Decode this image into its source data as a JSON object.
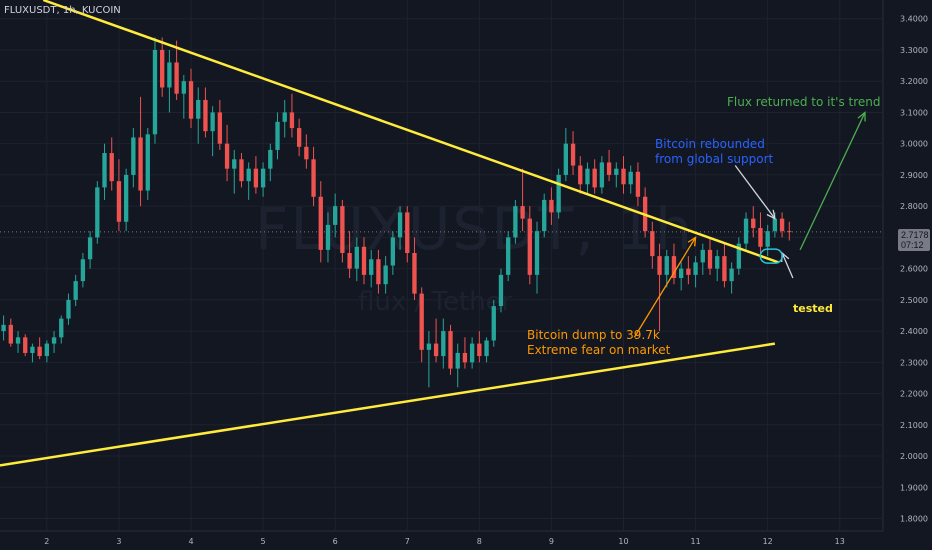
{
  "header": {
    "symbol": "FLUXUSDT, 1h, KUCOIN"
  },
  "watermark": {
    "main": "FLUXUSDT, 1h",
    "sub": "flux / Tether"
  },
  "price_tag": {
    "line1": "2.7178",
    "line2": "07:12"
  },
  "annotations": {
    "trend": "Flux returned to it's trend",
    "bitcoin_rebound_1": "Bitcoin rebounded",
    "bitcoin_rebound_2": "from global support",
    "bitcoin_dump_1": "Bitcoin dump to 39.7k",
    "bitcoin_dump_2": "Extreme fear on market",
    "tested": "tested"
  },
  "colors": {
    "background": "#131722",
    "up": "#26a69a",
    "down": "#ef5350",
    "trendline": "#ffeb3b",
    "grid": "#1e222d",
    "green_arrow": "#4caf50",
    "orange_arrow": "#ff9800",
    "circle": "#26c6da"
  },
  "chart_data": {
    "type": "candlestick",
    "title": "FLUXUSDT, 1h, KUCOIN",
    "x_ticks": [
      "2",
      "3",
      "4",
      "5",
      "6",
      "7",
      "8",
      "9",
      "10",
      "11",
      "12",
      "13"
    ],
    "y_ticks": [
      "1.8000",
      "1.9000",
      "2.0000",
      "2.1000",
      "2.2000",
      "2.3000",
      "2.4000",
      "2.5000",
      "2.6000",
      "2.7000",
      "2.8000",
      "2.9000",
      "3.0000",
      "3.1000",
      "3.2000",
      "3.3000",
      "3.4000"
    ],
    "ylim": [
      1.76,
      3.46
    ],
    "xlim": [
      1.35,
      13.6
    ],
    "last_price": 2.7178,
    "trendlines": [
      {
        "name": "resistance",
        "points": [
          [
            1.95,
            3.46
          ],
          [
            12.15,
            2.62
          ]
        ]
      },
      {
        "name": "support",
        "points": [
          [
            1.35,
            1.97
          ],
          [
            12.1,
            2.36
          ]
        ]
      }
    ],
    "candles": [
      [
        1.4,
        2.4,
        2.45,
        2.37,
        2.42
      ],
      [
        1.5,
        2.42,
        2.44,
        2.35,
        2.36
      ],
      [
        1.6,
        2.36,
        2.4,
        2.33,
        2.38
      ],
      [
        1.7,
        2.38,
        2.39,
        2.32,
        2.33
      ],
      [
        1.8,
        2.33,
        2.36,
        2.3,
        2.35
      ],
      [
        1.9,
        2.35,
        2.38,
        2.31,
        2.32
      ],
      [
        2.0,
        2.32,
        2.37,
        2.3,
        2.36
      ],
      [
        2.1,
        2.36,
        2.4,
        2.33,
        2.38
      ],
      [
        2.2,
        2.38,
        2.45,
        2.36,
        2.44
      ],
      [
        2.3,
        2.44,
        2.52,
        2.42,
        2.5
      ],
      [
        2.4,
        2.5,
        2.58,
        2.48,
        2.56
      ],
      [
        2.5,
        2.56,
        2.65,
        2.54,
        2.63
      ],
      [
        2.6,
        2.63,
        2.72,
        2.6,
        2.7
      ],
      [
        2.7,
        2.7,
        2.88,
        2.68,
        2.86
      ],
      [
        2.8,
        2.86,
        3.0,
        2.82,
        2.97
      ],
      [
        2.9,
        2.97,
        3.02,
        2.85,
        2.88
      ],
      [
        3.0,
        2.88,
        2.95,
        2.72,
        2.75
      ],
      [
        3.1,
        2.75,
        2.92,
        2.72,
        2.9
      ],
      [
        3.2,
        2.9,
        3.05,
        2.86,
        3.02
      ],
      [
        3.3,
        3.02,
        3.15,
        2.8,
        2.85
      ],
      [
        3.4,
        2.85,
        3.05,
        2.82,
        3.03
      ],
      [
        3.5,
        3.03,
        3.34,
        3.0,
        3.3
      ],
      [
        3.6,
        3.3,
        3.34,
        3.15,
        3.18
      ],
      [
        3.7,
        3.18,
        3.3,
        3.1,
        3.26
      ],
      [
        3.8,
        3.26,
        3.33,
        3.14,
        3.16
      ],
      [
        3.9,
        3.16,
        3.22,
        3.08,
        3.2
      ],
      [
        4.0,
        3.2,
        3.24,
        3.05,
        3.08
      ],
      [
        4.1,
        3.08,
        3.18,
        3.0,
        3.14
      ],
      [
        4.2,
        3.14,
        3.18,
        3.02,
        3.04
      ],
      [
        4.3,
        3.04,
        3.12,
        2.96,
        3.1
      ],
      [
        4.4,
        3.1,
        3.14,
        2.98,
        3.0
      ],
      [
        4.5,
        3.0,
        3.06,
        2.88,
        2.92
      ],
      [
        4.6,
        2.92,
        2.98,
        2.84,
        2.95
      ],
      [
        4.7,
        2.95,
        2.97,
        2.86,
        2.88
      ],
      [
        4.8,
        2.88,
        2.94,
        2.82,
        2.92
      ],
      [
        4.9,
        2.92,
        2.96,
        2.84,
        2.86
      ],
      [
        5.0,
        2.86,
        2.94,
        2.83,
        2.92
      ],
      [
        5.1,
        2.92,
        3.0,
        2.88,
        2.98
      ],
      [
        5.2,
        2.98,
        3.1,
        2.95,
        3.07
      ],
      [
        5.3,
        3.07,
        3.14,
        3.02,
        3.1
      ],
      [
        5.4,
        3.1,
        3.16,
        3.02,
        3.05
      ],
      [
        5.5,
        3.05,
        3.08,
        2.96,
        2.99
      ],
      [
        5.6,
        2.99,
        3.03,
        2.92,
        2.95
      ],
      [
        5.7,
        2.95,
        2.99,
        2.8,
        2.83
      ],
      [
        5.8,
        2.83,
        2.88,
        2.62,
        2.66
      ],
      [
        5.9,
        2.66,
        2.78,
        2.62,
        2.74
      ],
      [
        6.0,
        2.74,
        2.84,
        2.7,
        2.8
      ],
      [
        6.1,
        2.8,
        2.82,
        2.62,
        2.65
      ],
      [
        6.2,
        2.65,
        2.72,
        2.57,
        2.6
      ],
      [
        6.3,
        2.6,
        2.7,
        2.56,
        2.67
      ],
      [
        6.4,
        2.67,
        2.7,
        2.55,
        2.58
      ],
      [
        6.5,
        2.58,
        2.66,
        2.54,
        2.63
      ],
      [
        6.6,
        2.63,
        2.66,
        2.52,
        2.55
      ],
      [
        6.7,
        2.55,
        2.64,
        2.52,
        2.61
      ],
      [
        6.8,
        2.61,
        2.72,
        2.58,
        2.7
      ],
      [
        6.9,
        2.7,
        2.8,
        2.66,
        2.78
      ],
      [
        7.0,
        2.78,
        2.8,
        2.62,
        2.65
      ],
      [
        7.1,
        2.65,
        2.7,
        2.5,
        2.52
      ],
      [
        7.2,
        2.52,
        2.54,
        2.3,
        2.34
      ],
      [
        7.3,
        2.34,
        2.4,
        2.22,
        2.36
      ],
      [
        7.4,
        2.36,
        2.44,
        2.3,
        2.32
      ],
      [
        7.5,
        2.32,
        2.44,
        2.28,
        2.4
      ],
      [
        7.6,
        2.4,
        2.42,
        2.26,
        2.28
      ],
      [
        7.7,
        2.28,
        2.36,
        2.22,
        2.33
      ],
      [
        7.8,
        2.33,
        2.38,
        2.28,
        2.3
      ],
      [
        7.9,
        2.3,
        2.38,
        2.28,
        2.36
      ],
      [
        8.0,
        2.36,
        2.4,
        2.3,
        2.32
      ],
      [
        8.1,
        2.32,
        2.38,
        2.3,
        2.37
      ],
      [
        8.2,
        2.37,
        2.5,
        2.35,
        2.48
      ],
      [
        8.3,
        2.48,
        2.6,
        2.46,
        2.58
      ],
      [
        8.4,
        2.58,
        2.72,
        2.56,
        2.7
      ],
      [
        8.5,
        2.7,
        2.82,
        2.68,
        2.8
      ],
      [
        8.6,
        2.8,
        2.92,
        2.72,
        2.76
      ],
      [
        8.7,
        2.76,
        2.8,
        2.55,
        2.58
      ],
      [
        8.8,
        2.58,
        2.75,
        2.52,
        2.72
      ],
      [
        8.9,
        2.72,
        2.84,
        2.7,
        2.82
      ],
      [
        9.0,
        2.82,
        2.86,
        2.74,
        2.78
      ],
      [
        9.1,
        2.78,
        2.92,
        2.76,
        2.9
      ],
      [
        9.2,
        2.9,
        3.05,
        2.88,
        3.0
      ],
      [
        9.3,
        3.0,
        3.04,
        2.9,
        2.93
      ],
      [
        9.4,
        2.93,
        2.96,
        2.84,
        2.87
      ],
      [
        9.5,
        2.87,
        2.94,
        2.84,
        2.92
      ],
      [
        9.6,
        2.92,
        2.95,
        2.84,
        2.86
      ],
      [
        9.7,
        2.86,
        2.96,
        2.84,
        2.94
      ],
      [
        9.8,
        2.94,
        2.98,
        2.88,
        2.9
      ],
      [
        9.9,
        2.9,
        2.94,
        2.86,
        2.92
      ],
      [
        10.0,
        2.92,
        2.96,
        2.84,
        2.87
      ],
      [
        10.1,
        2.87,
        2.93,
        2.84,
        2.91
      ],
      [
        10.2,
        2.91,
        2.94,
        2.8,
        2.83
      ],
      [
        10.3,
        2.83,
        2.86,
        2.7,
        2.72
      ],
      [
        10.4,
        2.72,
        2.75,
        2.6,
        2.64
      ],
      [
        10.5,
        2.64,
        2.68,
        2.4,
        2.58
      ],
      [
        10.6,
        2.58,
        2.66,
        2.54,
        2.64
      ],
      [
        10.7,
        2.64,
        2.68,
        2.55,
        2.57
      ],
      [
        10.8,
        2.57,
        2.62,
        2.53,
        2.6
      ],
      [
        10.9,
        2.6,
        2.64,
        2.55,
        2.58
      ],
      [
        11.0,
        2.58,
        2.64,
        2.54,
        2.62
      ],
      [
        11.1,
        2.62,
        2.68,
        2.58,
        2.66
      ],
      [
        11.2,
        2.66,
        2.7,
        2.58,
        2.6
      ],
      [
        11.3,
        2.6,
        2.66,
        2.56,
        2.64
      ],
      [
        11.4,
        2.64,
        2.68,
        2.54,
        2.56
      ],
      [
        11.5,
        2.56,
        2.62,
        2.52,
        2.6
      ],
      [
        11.6,
        2.6,
        2.7,
        2.58,
        2.68
      ],
      [
        11.7,
        2.68,
        2.78,
        2.66,
        2.76
      ],
      [
        11.8,
        2.76,
        2.8,
        2.7,
        2.73
      ],
      [
        11.9,
        2.73,
        2.78,
        2.64,
        2.67
      ],
      [
        12.0,
        2.67,
        2.74,
        2.64,
        2.72
      ],
      [
        12.1,
        2.72,
        2.78,
        2.7,
        2.76
      ],
      [
        12.2,
        2.76,
        2.78,
        2.7,
        2.72
      ],
      [
        12.3,
        2.72,
        2.75,
        2.69,
        2.7178
      ]
    ],
    "drawings": {
      "green_arrow": [
        [
          12.45,
          2.66
        ],
        [
          13.35,
          3.1
        ]
      ],
      "orange_arrow": [
        [
          10.15,
          2.38
        ],
        [
          11.0,
          2.7
        ]
      ],
      "rebound_arrow": [
        [
          11.55,
          2.93
        ],
        [
          12.1,
          2.76
        ]
      ],
      "tested_arrow": [
        [
          12.35,
          2.57
        ],
        [
          12.2,
          2.65
        ]
      ],
      "tested_circle": [
        12.05,
        2.64
      ]
    }
  }
}
